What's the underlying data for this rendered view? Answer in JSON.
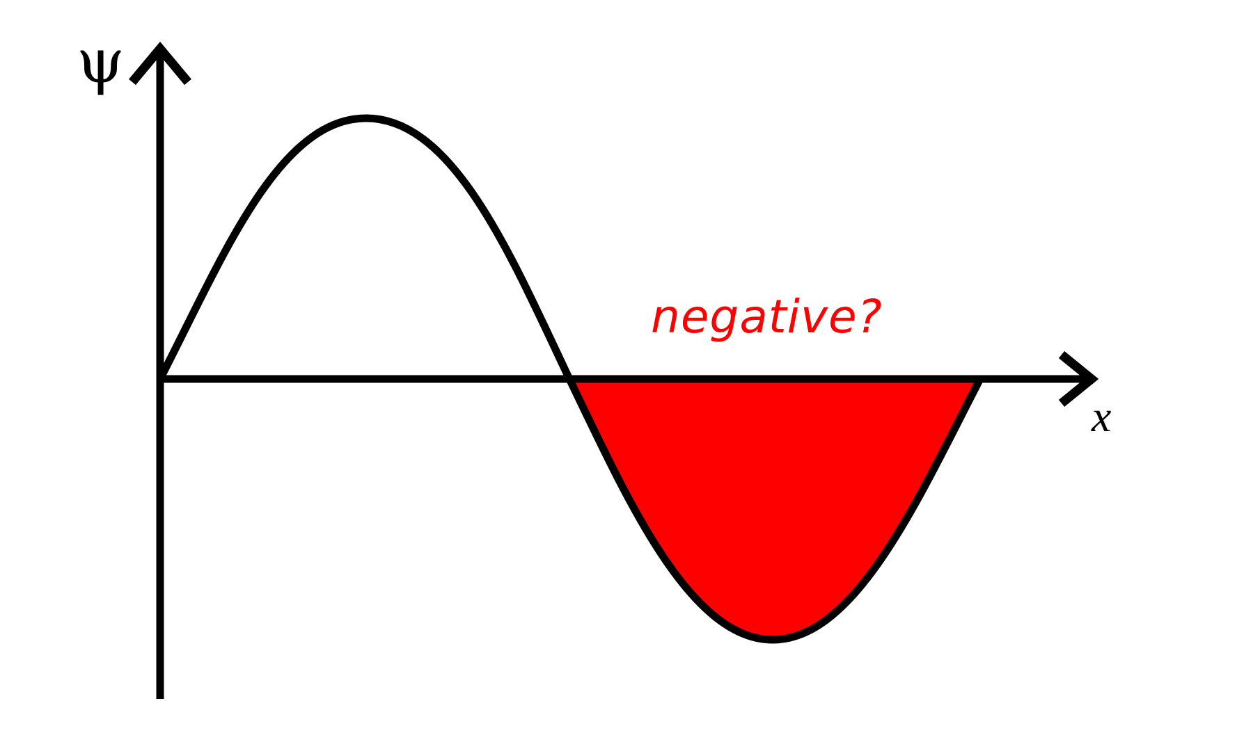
{
  "labels": {
    "y_axis": "ψ",
    "x_axis": "x",
    "annotation": "negative?"
  },
  "colors": {
    "curve": "#000000",
    "negative_fill": "#ff0000",
    "annotation": "#ff0000"
  }
}
